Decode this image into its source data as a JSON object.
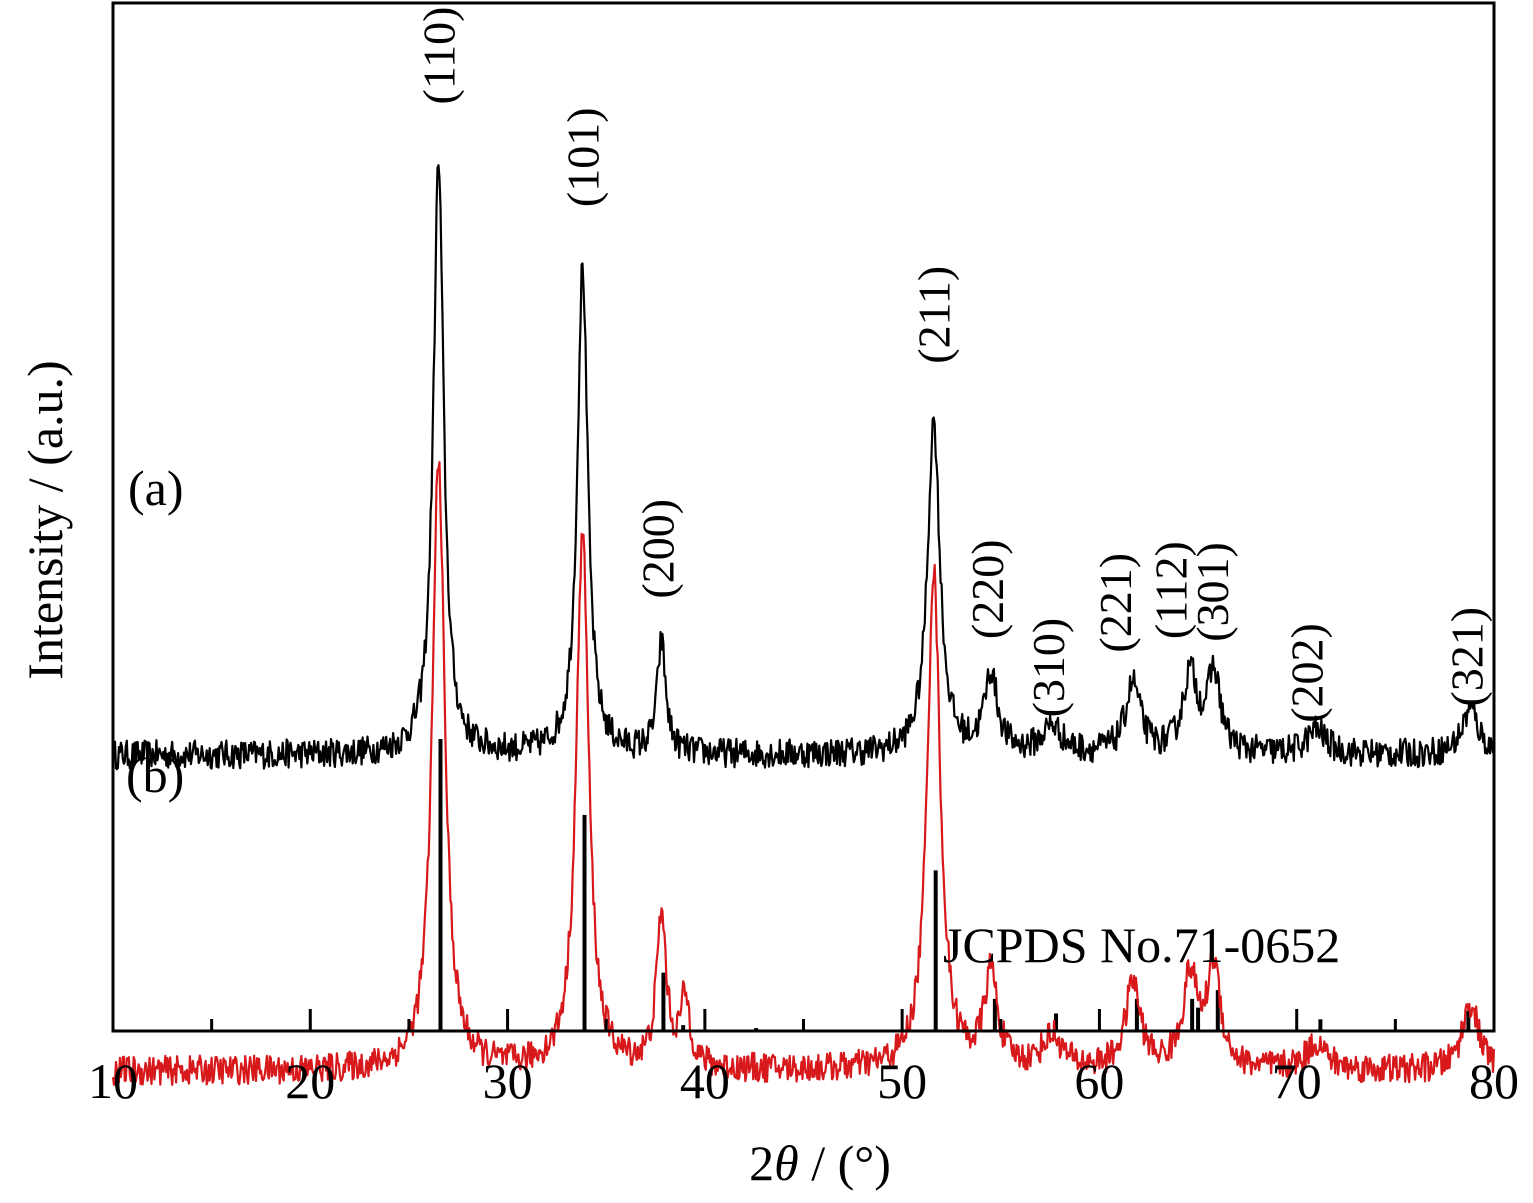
{
  "chart_data": {
    "type": "line",
    "title": "",
    "xlabel": "2θ / (°)",
    "xlabel_parts": {
      "prefix": "2",
      "symbol": "θ",
      "suffix": " / (°)"
    },
    "ylabel": "Intensity / (a.u.)",
    "xlim": [
      10,
      80
    ],
    "x_ticks": [
      10,
      20,
      30,
      40,
      50,
      60,
      70,
      80
    ],
    "y_ticks": [],
    "grid": false,
    "legend": "none",
    "series": [
      {
        "label": "(a)",
        "color": "#000000",
        "baseline": 0.24,
        "noise": 0.018,
        "peaks": [
          {
            "x": 26.5,
            "h": 2.19,
            "w": 0.32
          },
          {
            "x": 33.8,
            "h": 1.81,
            "w": 0.32
          },
          {
            "x": 37.8,
            "h": 0.41,
            "w": 0.26
          },
          {
            "x": 51.6,
            "h": 1.23,
            "w": 0.38
          },
          {
            "x": 54.5,
            "h": 0.29,
            "w": 0.4
          },
          {
            "x": 57.6,
            "h": 0.1,
            "w": 0.6
          },
          {
            "x": 61.7,
            "h": 0.26,
            "w": 0.45
          },
          {
            "x": 64.6,
            "h": 0.29,
            "w": 0.45
          },
          {
            "x": 65.8,
            "h": 0.29,
            "w": 0.4
          },
          {
            "x": 71.0,
            "h": 0.09,
            "w": 0.6
          },
          {
            "x": 78.8,
            "h": 0.17,
            "w": 0.5
          }
        ]
      },
      {
        "label": "(b)",
        "color": "#d7191c",
        "baseline": -0.93,
        "noise": 0.018,
        "peaks": [
          {
            "x": 26.5,
            "h": 2.27,
            "w": 0.38
          },
          {
            "x": 33.8,
            "h": 1.99,
            "w": 0.38
          },
          {
            "x": 37.8,
            "h": 0.56,
            "w": 0.3
          },
          {
            "x": 39.0,
            "h": 0.25,
            "w": 0.3
          },
          {
            "x": 51.6,
            "h": 1.85,
            "w": 0.4
          },
          {
            "x": 54.5,
            "h": 0.35,
            "w": 0.4
          },
          {
            "x": 57.6,
            "h": 0.12,
            "w": 0.6
          },
          {
            "x": 61.7,
            "h": 0.32,
            "w": 0.45
          },
          {
            "x": 64.6,
            "h": 0.34,
            "w": 0.45
          },
          {
            "x": 65.8,
            "h": 0.38,
            "w": 0.4
          },
          {
            "x": 71.0,
            "h": 0.1,
            "w": 0.6
          },
          {
            "x": 78.8,
            "h": 0.25,
            "w": 0.5
          }
        ]
      }
    ],
    "peak_labels": [
      {
        "text": "(110)",
        "x": 26.5,
        "y": 2.65
      },
      {
        "text": "(101)",
        "x": 33.8,
        "y": 2.27
      },
      {
        "text": "(200)",
        "x": 37.6,
        "y": 0.82
      },
      {
        "text": "(211)",
        "x": 51.6,
        "y": 1.69
      },
      {
        "text": "(220)",
        "x": 54.3,
        "y": 0.67
      },
      {
        "text": "(310)",
        "x": 57.4,
        "y": 0.38
      },
      {
        "text": "(221)",
        "x": 60.8,
        "y": 0.62
      },
      {
        "text": "(112)",
        "x": 63.6,
        "y": 0.67
      },
      {
        "text": "(301)",
        "x": 65.7,
        "y": 0.66
      },
      {
        "text": "(202)",
        "x": 70.5,
        "y": 0.36
      },
      {
        "text": "(321)",
        "x": 78.6,
        "y": 0.42
      }
    ],
    "reference": {
      "label": "JCPDS No.71-0652",
      "bars": [
        {
          "x": 26.6,
          "h": 1.0
        },
        {
          "x": 33.9,
          "h": 0.74
        },
        {
          "x": 37.9,
          "h": 0.2
        },
        {
          "x": 38.9,
          "h": 0.02
        },
        {
          "x": 42.6,
          "h": 0.01
        },
        {
          "x": 51.7,
          "h": 0.55
        },
        {
          "x": 54.7,
          "h": 0.11
        },
        {
          "x": 57.8,
          "h": 0.06
        },
        {
          "x": 61.9,
          "h": 0.11
        },
        {
          "x": 64.7,
          "h": 0.11
        },
        {
          "x": 65.0,
          "h": 0.08
        },
        {
          "x": 66.0,
          "h": 0.14
        },
        {
          "x": 71.2,
          "h": 0.04
        },
        {
          "x": 78.7,
          "h": 0.07
        }
      ]
    }
  }
}
